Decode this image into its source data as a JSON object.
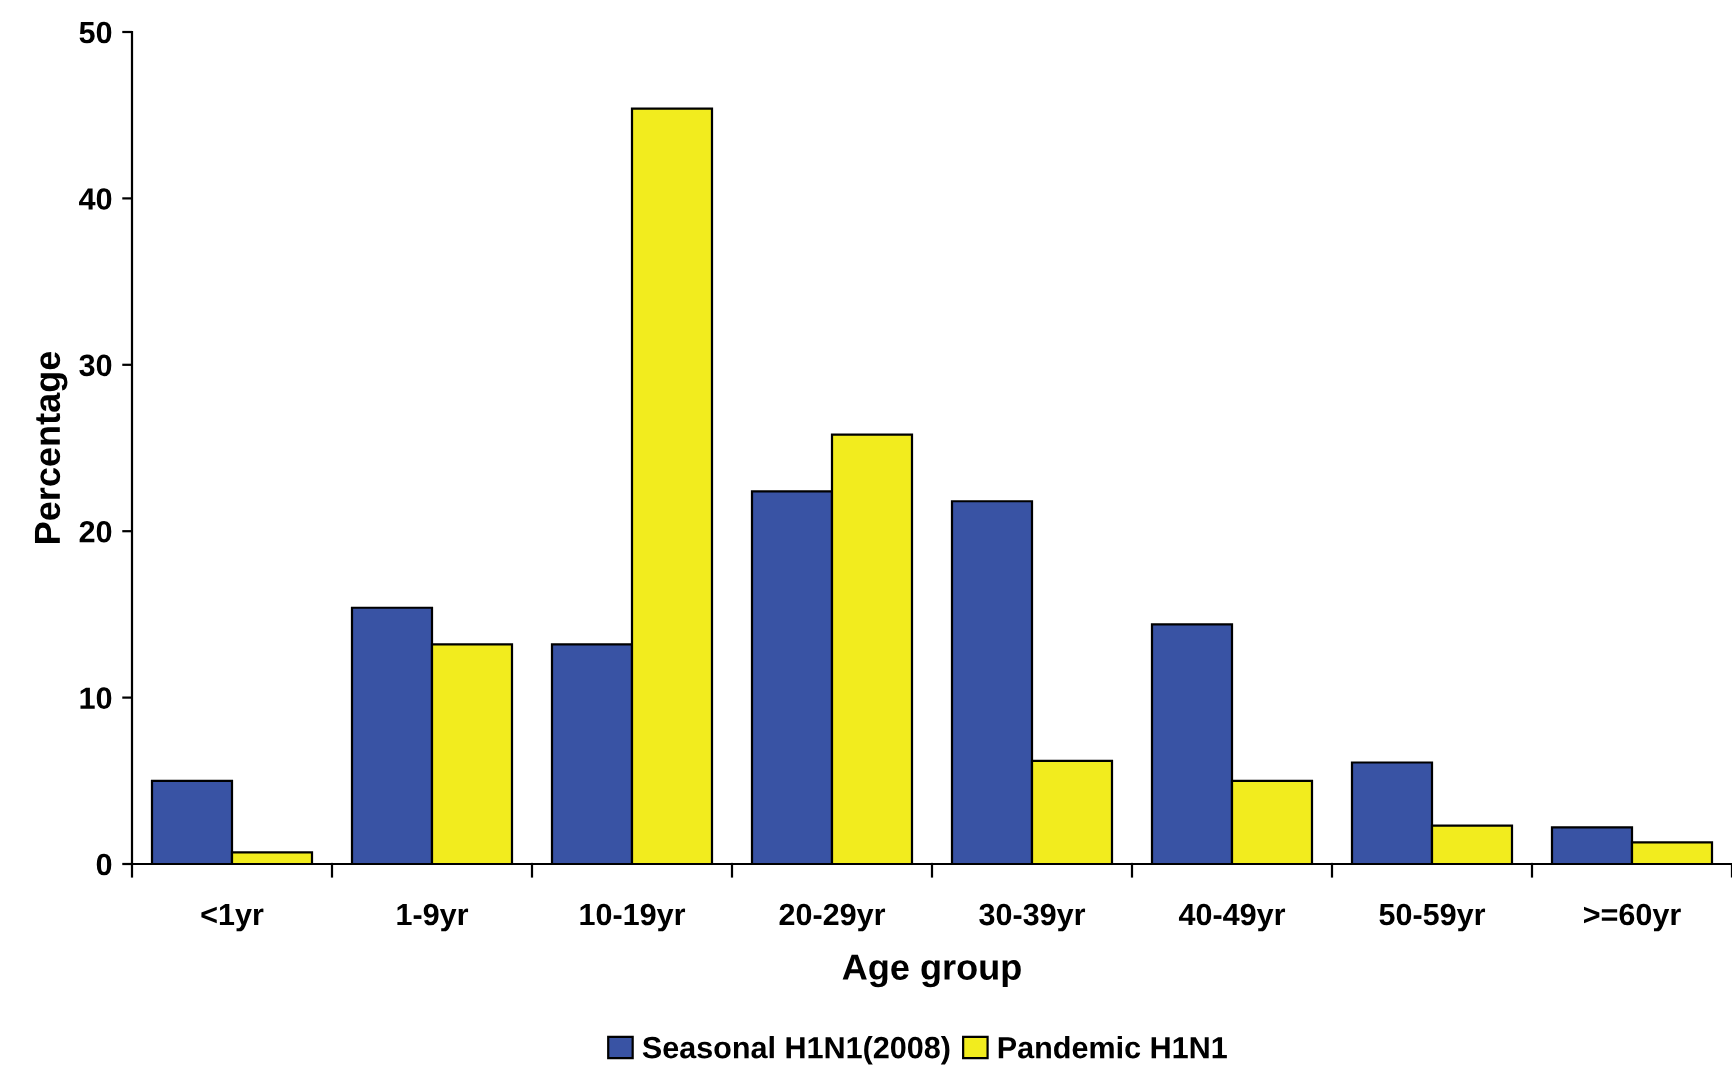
{
  "chart_data": {
    "type": "bar",
    "xlabel": "Age group",
    "ylabel": "Percentage",
    "categories": [
      "<1yr",
      "1-9yr",
      "10-19yr",
      "20-29yr",
      "30-39yr",
      "40-49yr",
      "50-59yr",
      ">=60yr"
    ],
    "series": [
      {
        "name": "Seasonal H1N1(2008)",
        "color": "#3953a4",
        "values": [
          5.0,
          15.4,
          13.2,
          22.4,
          21.8,
          14.4,
          6.1,
          2.2
        ]
      },
      {
        "name": "Pandemic H1N1",
        "color": "#f2ec1e",
        "values": [
          0.7,
          13.2,
          45.4,
          25.8,
          6.2,
          5.0,
          2.3,
          1.3
        ]
      }
    ],
    "ylim": [
      0,
      50
    ],
    "yticks": [
      0,
      10,
      20,
      30,
      40,
      50
    ],
    "grid": false,
    "legend": "bottom"
  }
}
